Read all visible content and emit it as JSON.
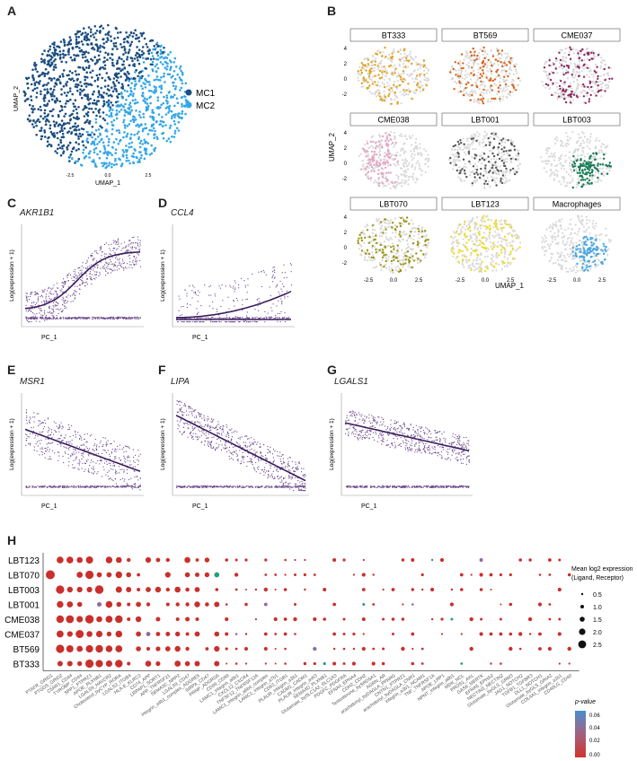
{
  "panels": {
    "A": "A",
    "B": "B",
    "C": "C",
    "D": "D",
    "E": "E",
    "F": "F",
    "G": "G",
    "H": "H"
  },
  "panelA": {
    "xlabel": "UMAP_1",
    "ylabel": "UMAP_2",
    "xticks": [
      "-2.5",
      "0.0",
      "2.5"
    ],
    "legend": [
      {
        "label": "MC1",
        "color": "#1c4e80"
      },
      {
        "label": "MC2",
        "color": "#35a7e6"
      }
    ]
  },
  "panelB": {
    "xlabel": "UMAP_1",
    "ylabel": "UMAP_2",
    "yticks": [
      "4",
      "2",
      "0",
      "-2"
    ],
    "xticks": [
      "-2.5",
      "0.0",
      "2.5"
    ],
    "facets": [
      {
        "label": "BT333",
        "color": "#e3a21a"
      },
      {
        "label": "BT569",
        "color": "#d8651c"
      },
      {
        "label": "CME037",
        "color": "#8e2a63"
      },
      {
        "label": "CME038",
        "color": "#e3a6c4"
      },
      {
        "label": "LBT001",
        "color": "#555555"
      },
      {
        "label": "LBT003",
        "color": "#137a54"
      },
      {
        "label": "LBT070",
        "color": "#9c9512"
      },
      {
        "label": "LBT123",
        "color": "#ecdc2d"
      },
      {
        "label": "Macrophages",
        "color": "#4aa8df"
      }
    ]
  },
  "trend_panels": [
    {
      "letter": "C",
      "gene": "AKR1B1",
      "xlabel": "PC_1",
      "ylabel": "Log(expression + 1)"
    },
    {
      "letter": "D",
      "gene": "CCL4",
      "xlabel": "PC_1",
      "ylabel": "Log(expression + 1)"
    },
    {
      "letter": "E",
      "gene": "MSR1",
      "xlabel": "PC_1",
      "ylabel": "Log(expression + 1)"
    },
    {
      "letter": "F",
      "gene": "LIPA",
      "xlabel": "PC_1",
      "ylabel": "Log(expression + 1)"
    },
    {
      "letter": "G",
      "gene": "LGALS1",
      "xlabel": "PC_1",
      "ylabel": "Log(expression + 1)"
    }
  ],
  "chart_data": {
    "type": "scatter",
    "rows": [
      "LBT123",
      "LBT070",
      "LBT003",
      "LBT001",
      "CME038",
      "CME037",
      "BT569",
      "BT333"
    ],
    "columns": [
      "PTAFR_GRID1",
      "PTGDS_GRID2",
      "C5AR1_CD44",
      "TYROBP_CD44",
      "SPP1_PTPRZ1",
      "APOE_PLXNB1",
      "LGALS9_HAVCR2",
      "Cholesterol_byCYP_RORA",
      "LGALS3_ITGB4",
      "HLA-E_KLRC2",
      "CD74_APP",
      "LRPAP1_SORT1",
      "APP_TNFRSF21",
      "SEMA3C_NRP2",
      "LGALS9_CD47",
      "integrin_a4b1_complex_ADGRE5",
      "SIRPA_CD47",
      "PRNP_ADGRG6",
      "CD99_CD99",
      "LAMC1_integrin_a6b1",
      "CXCL12_CXCR4",
      "TNFSF12_TNFRSF12A",
      "LAMC1_integrin_a6b4_complex",
      "LAMC1_integrin_a7b1",
      "CD63_ITGB1",
      "PLAUR_integrin_a3b1",
      "CADM1_CADM1",
      "PLAUR_integrin_avb3",
      "SEMA4D_PLXNB1",
      "Glutamate_bySLC1A2_SLC1A3",
      "PDGFC_PDGFRA",
      "EFNA4_EPHA4",
      "CDH2_CDH2",
      "Testosterone_bySRD5A1",
      "AGRN_AR",
      "arachidonyl_byDAGLA_PPARG",
      "CNTN1_PTPRZ1",
      "arachidonyl_byDAGLA_CNR1",
      "integrin_a3b1_NCAM1",
      "TNF_TNFRSF1A",
      "APOE_LRP1",
      "NPNT_integrin_a8b1",
      "MDK_NCL",
      "PROS1_AXL",
      "GAS6_MERTK",
      "EFNA5_EPHA2",
      "NECTIN3_NECTIN2",
      "Glutamate_byGLS_GRM3",
      "JAG1_NOTCH2",
      "TGFB1_TGFBR3",
      "DLL1_NOTCH1",
      "Glutamate_byGLS_GRIA2",
      "COL4A1_integrin_a1b1",
      "CD40LG_CD40"
    ],
    "size_legend": {
      "title": "Mean log2 expression\n(Ligand, Receptor)",
      "values": [
        0.5,
        1.0,
        1.5,
        2.0,
        2.5
      ]
    },
    "color_legend": {
      "title": "p-value",
      "ticks": [
        "0.06",
        "0.04",
        "0.02",
        "0.00"
      ],
      "low_color": "#d0342c",
      "high_color": "#4a8fcd"
    }
  }
}
